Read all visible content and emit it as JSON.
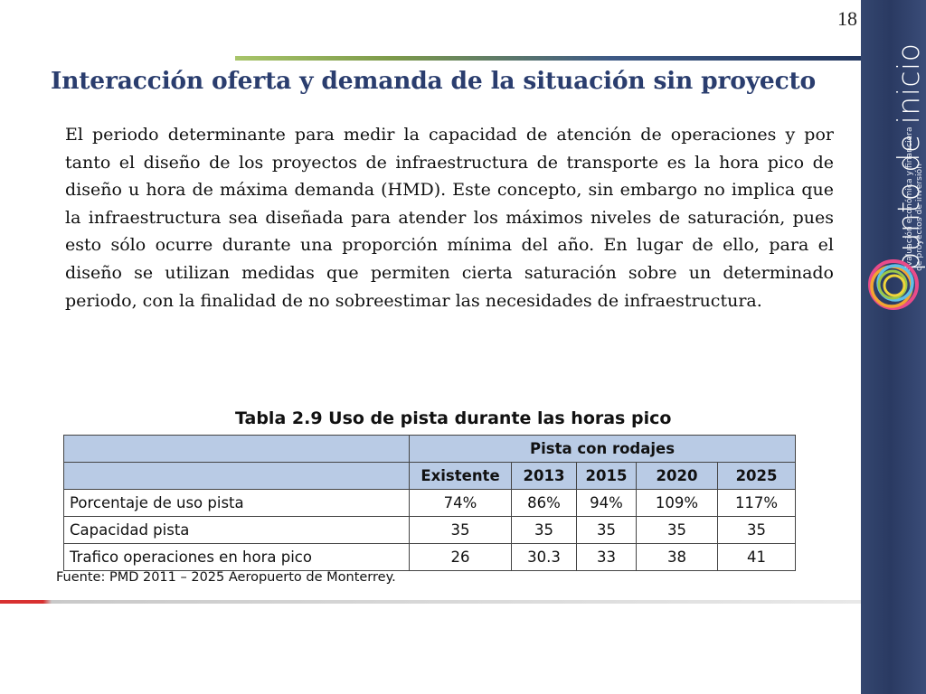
{
  "page_number": "18",
  "title": "Interacción oferta y demanda de la situación sin proyecto",
  "body_text": "El periodo determinante para medir la capacidad de atención de operaciones y por tanto el diseño de los proyectos de infraestructura de transporte es la hora pico de diseño u hora de máxima demanda (HMD). Este concepto, sin embargo no implica que la infraestructura sea diseñada para atender los máximos niveles de saturación, pues esto sólo ocurre durante una proporción mínima del año. En lugar de ello, para el diseño se utilizan medidas que permiten cierta saturación sobre un determinado periodo, con la finalidad de no sobreestimar las necesidades de infraestructura.",
  "table": {
    "title": "Tabla 2.9 Uso de pista durante las horas pico",
    "group_header": "Pista con rodajes",
    "columns": [
      "Existente",
      "2013",
      "2015",
      "2020",
      "2025"
    ],
    "rows": [
      {
        "label": "Porcentaje de uso pista",
        "values": [
          "74%",
          "86%",
          "94%",
          "109%",
          "117%"
        ]
      },
      {
        "label": "Capacidad pista",
        "values": [
          "35",
          "35",
          "35",
          "35",
          "35"
        ]
      },
      {
        "label": "Trafico operaciones en hora pico",
        "values": [
          "26",
          "30.3",
          "33",
          "38",
          "41"
        ]
      }
    ],
    "source": "Fuente: PMD 2011 – 2025 Aeropuerto de Monterrey."
  },
  "brand": {
    "name": "punto de inicio",
    "tagline_line1": "evaluación económica y financiera",
    "tagline_line2": "de proyectos de inversión",
    "sidebar_color": "#2f416b",
    "title_color": "#2a3d6e",
    "table_header_color": "#b9cbe5"
  }
}
